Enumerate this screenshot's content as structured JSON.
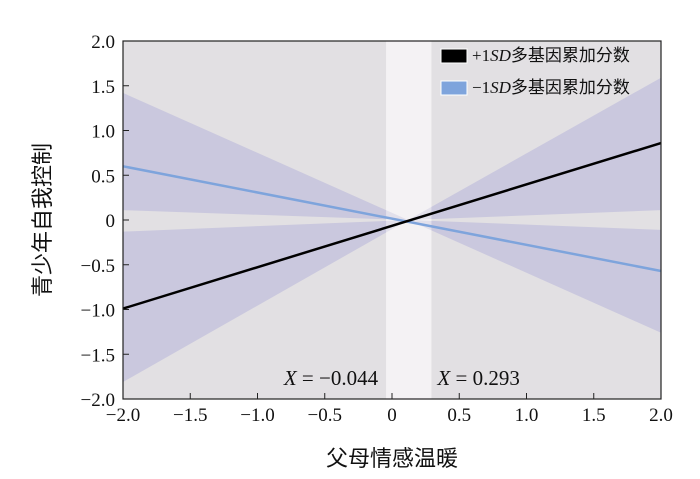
{
  "chart_data": {
    "type": "line",
    "title": "",
    "xlabel": "父母情感温暖",
    "ylabel": "青少年自我控制",
    "xlim": [
      -2.0,
      2.0
    ],
    "ylim": [
      -2.0,
      2.0
    ],
    "xticks": [
      "−2.0",
      "−1.5",
      "−1.0",
      "−0.5",
      "0",
      "0.5",
      "1.0",
      "1.5",
      "2.0"
    ],
    "yticks": [
      "2.0",
      "1.5",
      "1.0",
      "0.5",
      "0",
      "−0.5",
      "−1.0",
      "−1.5",
      "−2.0"
    ],
    "xtick_values": [
      -2,
      -1.5,
      -1,
      -0.5,
      0,
      0.5,
      1,
      1.5,
      2
    ],
    "ytick_values": [
      2,
      1.5,
      1,
      0.5,
      0,
      -0.5,
      -1,
      -1.5,
      -2
    ],
    "legend_position": "top-right",
    "series": [
      {
        "name": "+1SD多基因累加分数",
        "label_prefix": "+1",
        "label_italic": "SD",
        "label_suffix": "多基因累加分数",
        "color": "#000000",
        "x": [
          -2,
          2
        ],
        "y": [
          -0.99,
          0.86
        ],
        "band": {
          "x": [
            -2,
            0.12,
            2
          ],
          "upper": [
            -0.13,
            0.0,
            1.59
          ],
          "lower": [
            -1.81,
            0.0,
            0.11
          ]
        }
      },
      {
        "name": "−1SD多基因累加分数",
        "label_prefix": "−1",
        "label_italic": "SD",
        "label_suffix": "多基因累加分数",
        "color": "#7ea4dc",
        "x": [
          -2,
          2
        ],
        "y": [
          0.6,
          -0.57
        ],
        "band": {
          "x": [
            -2,
            0.12,
            2
          ],
          "upper": [
            1.42,
            0.0,
            -0.11
          ],
          "lower": [
            0.11,
            0.0,
            -1.26
          ]
        }
      }
    ],
    "region_of_significance": {
      "lower": -0.044,
      "upper": 0.293
    },
    "annotations": [
      {
        "var": "X",
        "text": " = −0.044",
        "x": -0.044
      },
      {
        "var": "X",
        "text": " = 0.293",
        "x": 0.293
      }
    ],
    "colors": {
      "outside": "#e2e0e3",
      "inside": "#f4f2f4",
      "band": "#c6c3dd"
    }
  }
}
